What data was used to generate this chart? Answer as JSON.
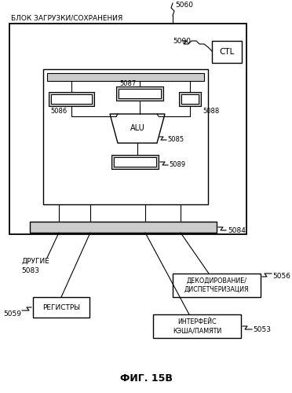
{
  "title": "ФИГ. 15В",
  "bg_color": "#ffffff",
  "outer_box_label": "БЛОК ЗАГРУЗКИ/СОХРАНЕНИЯ",
  "label_5060": "5060",
  "label_5090": "5090",
  "label_5084": "5084",
  "label_5086": "5086",
  "label_5087": "5087",
  "label_5088": "5088",
  "label_5085": "5085",
  "label_5089": "5089",
  "label_5083": "5083",
  "label_5059": "5059",
  "label_5056": "5056",
  "label_5053": "5053",
  "text_ctl": "CTL",
  "text_alu": "ALU",
  "text_другие": "ДРУГИЕ",
  "text_регистры": "РЕГИСТРЫ",
  "text_декодирование": "ДЕКОДИРОВАНИЕ/\nДИСПЕТЧЕРИЗАЦИЯ",
  "text_интерфейс": "ИНТЕРФЕЙС\nКЭША/ПАМЯТИ"
}
